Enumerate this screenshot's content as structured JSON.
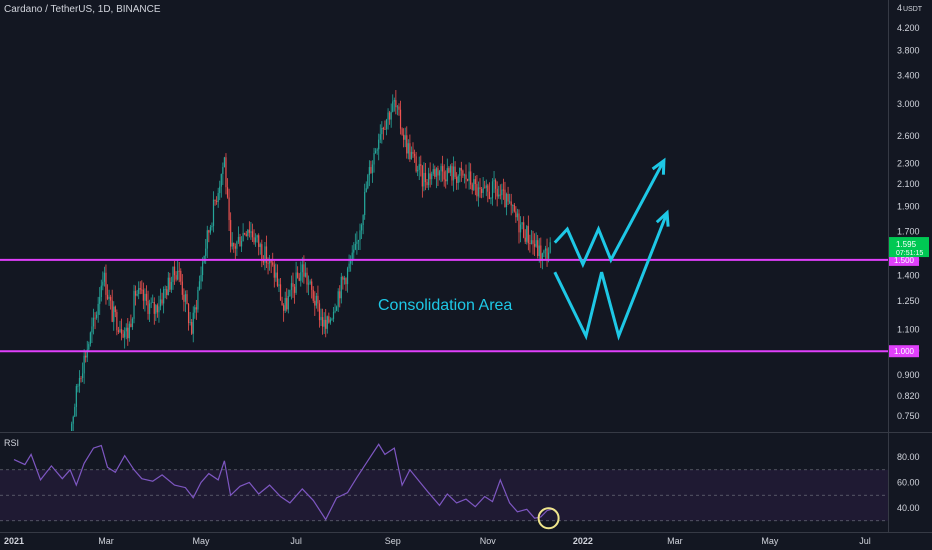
{
  "header": {
    "title": "Cardano / TetherUS, 1D, BINANCE"
  },
  "annotation": {
    "text": "Consolidation Area"
  },
  "chart_data": [
    {
      "type": "candlestick",
      "title": "Cardano / TetherUS, 1D, BINANCE",
      "y_scale": "log",
      "ylim": [
        0.68,
        4.6
      ],
      "currency_label": "USDT",
      "top_tick": "4",
      "y_ticks": [
        0.75,
        0.82,
        0.9,
        1.0,
        1.1,
        1.25,
        1.4,
        1.5,
        1.7,
        1.9,
        2.1,
        2.3,
        2.6,
        3.0,
        3.4,
        3.8,
        4.2
      ],
      "x_ticks": [
        "2021",
        "Mar",
        "May",
        "Jul",
        "Sep",
        "Nov",
        "2022",
        "Mar",
        "May",
        "Jul"
      ],
      "x_tick_dates": [
        "2021-01-01",
        "2021-03-01",
        "2021-05-01",
        "2021-07-01",
        "2021-09-01",
        "2021-11-01",
        "2022-01-01",
        "2022-03-01",
        "2022-05-01",
        "2022-07-01"
      ],
      "path_points": [
        [
          "2021-02-03",
          0.62
        ],
        [
          "2021-02-12",
          0.9
        ],
        [
          "2021-02-22",
          1.15
        ],
        [
          "2021-02-27",
          1.42
        ],
        [
          "2021-03-05",
          1.18
        ],
        [
          "2021-03-15",
          1.08
        ],
        [
          "2021-03-20",
          1.3
        ],
        [
          "2021-04-01",
          1.2
        ],
        [
          "2021-04-16",
          1.45
        ],
        [
          "2021-04-25",
          1.1
        ],
        [
          "2021-05-03",
          1.55
        ],
        [
          "2021-05-10",
          1.95
        ],
        [
          "2021-05-16",
          2.35
        ],
        [
          "2021-05-20",
          1.55
        ],
        [
          "2021-05-31",
          1.75
        ],
        [
          "2021-06-10",
          1.55
        ],
        [
          "2021-06-18",
          1.4
        ],
        [
          "2021-06-23",
          1.2
        ],
        [
          "2021-07-05",
          1.45
        ],
        [
          "2021-07-20",
          1.1
        ],
        [
          "2021-07-28",
          1.3
        ],
        [
          "2021-08-08",
          1.55
        ],
        [
          "2021-08-16",
          2.15
        ],
        [
          "2021-08-24",
          2.7
        ],
        [
          "2021-09-02",
          3.0
        ],
        [
          "2021-09-10",
          2.5
        ],
        [
          "2021-09-20",
          2.15
        ],
        [
          "2021-09-30",
          2.25
        ],
        [
          "2021-10-10",
          2.2
        ],
        [
          "2021-10-20",
          2.15
        ],
        [
          "2021-10-28",
          1.98
        ],
        [
          "2021-11-05",
          2.05
        ],
        [
          "2021-11-12",
          1.95
        ],
        [
          "2021-11-22",
          1.75
        ],
        [
          "2021-11-30",
          1.62
        ],
        [
          "2021-12-06",
          1.52
        ],
        [
          "2021-12-12",
          1.595
        ]
      ],
      "last_price": {
        "value": 1.595,
        "label": "1.595",
        "countdown": "07:51:15",
        "color": "#00c853"
      },
      "horizontal_levels": [
        {
          "value": 1.5,
          "label": "1.500",
          "color": "#e040fb"
        },
        {
          "value": 1.0,
          "label": "1.000",
          "color": "#e040fb"
        }
      ],
      "projection_zigzag": [
        [
          "2021-12-14",
          1.62
        ],
        [
          "2021-12-22",
          1.72
        ],
        [
          "2022-01-01",
          1.47
        ],
        [
          "2022-01-11",
          1.72
        ],
        [
          "2022-01-19",
          1.5
        ],
        [
          "2022-02-22",
          2.33
        ]
      ],
      "projection_w": [
        [
          "2021-12-14",
          1.42
        ],
        [
          "2022-01-03",
          1.07
        ],
        [
          "2022-01-13",
          1.42
        ],
        [
          "2022-01-24",
          1.07
        ],
        [
          "2022-02-24",
          1.85
        ]
      ],
      "projection_color": "#1ec8e6",
      "annotation": "Consolidation Area"
    },
    {
      "type": "line",
      "title": "RSI",
      "ylim": [
        25,
        100
      ],
      "y_ticks": [
        40,
        60,
        80
      ],
      "bands": {
        "upper": 70,
        "middle": 50,
        "lower": 30
      },
      "band_fill_color": "#1f1a33",
      "line_color": "#7e57c2",
      "path_points": [
        [
          "2021-01-01",
          78
        ],
        [
          "2021-01-08",
          74
        ],
        [
          "2021-01-12",
          82
        ],
        [
          "2021-01-18",
          62
        ],
        [
          "2021-01-25",
          73
        ],
        [
          "2021-02-01",
          63
        ],
        [
          "2021-02-06",
          70
        ],
        [
          "2021-02-10",
          58
        ],
        [
          "2021-02-15",
          75
        ],
        [
          "2021-02-21",
          87
        ],
        [
          "2021-02-26",
          89
        ],
        [
          "2021-03-02",
          72
        ],
        [
          "2021-03-07",
          68
        ],
        [
          "2021-03-13",
          81
        ],
        [
          "2021-03-19",
          70
        ],
        [
          "2021-03-24",
          63
        ],
        [
          "2021-03-31",
          61
        ],
        [
          "2021-04-06",
          66
        ],
        [
          "2021-04-14",
          58
        ],
        [
          "2021-04-21",
          56
        ],
        [
          "2021-04-26",
          48
        ],
        [
          "2021-05-01",
          60
        ],
        [
          "2021-05-06",
          67
        ],
        [
          "2021-05-12",
          62
        ],
        [
          "2021-05-16",
          77
        ],
        [
          "2021-05-20",
          50
        ],
        [
          "2021-05-26",
          57
        ],
        [
          "2021-06-01",
          60
        ],
        [
          "2021-06-07",
          51
        ],
        [
          "2021-06-14",
          58
        ],
        [
          "2021-06-21",
          49
        ],
        [
          "2021-06-27",
          44
        ],
        [
          "2021-07-05",
          55
        ],
        [
          "2021-07-12",
          46
        ],
        [
          "2021-07-20",
          31
        ],
        [
          "2021-07-27",
          48
        ],
        [
          "2021-08-03",
          52
        ],
        [
          "2021-08-09",
          64
        ],
        [
          "2021-08-16",
          77
        ],
        [
          "2021-08-23",
          90
        ],
        [
          "2021-08-27",
          82
        ],
        [
          "2021-09-02",
          87
        ],
        [
          "2021-09-07",
          58
        ],
        [
          "2021-09-12",
          70
        ],
        [
          "2021-09-18",
          61
        ],
        [
          "2021-09-24",
          52
        ],
        [
          "2021-10-01",
          42
        ],
        [
          "2021-10-06",
          51
        ],
        [
          "2021-10-12",
          44
        ],
        [
          "2021-10-18",
          47
        ],
        [
          "2021-10-24",
          41
        ],
        [
          "2021-10-30",
          49
        ],
        [
          "2021-11-04",
          45
        ],
        [
          "2021-11-09",
          62
        ],
        [
          "2021-11-15",
          44
        ],
        [
          "2021-11-20",
          37
        ],
        [
          "2021-11-26",
          39
        ],
        [
          "2021-12-01",
          32
        ],
        [
          "2021-12-05",
          33
        ],
        [
          "2021-12-09",
          38
        ],
        [
          "2021-12-12",
          39
        ]
      ],
      "highlight_circle": {
        "date": "2021-12-10",
        "value": 32,
        "color": "#f0e68c"
      }
    }
  ],
  "colors": {
    "background": "#131722",
    "up": "#26a69a",
    "down": "#ef5350",
    "axis_text": "#d1d4dc",
    "grid": "#2a2e39"
  }
}
